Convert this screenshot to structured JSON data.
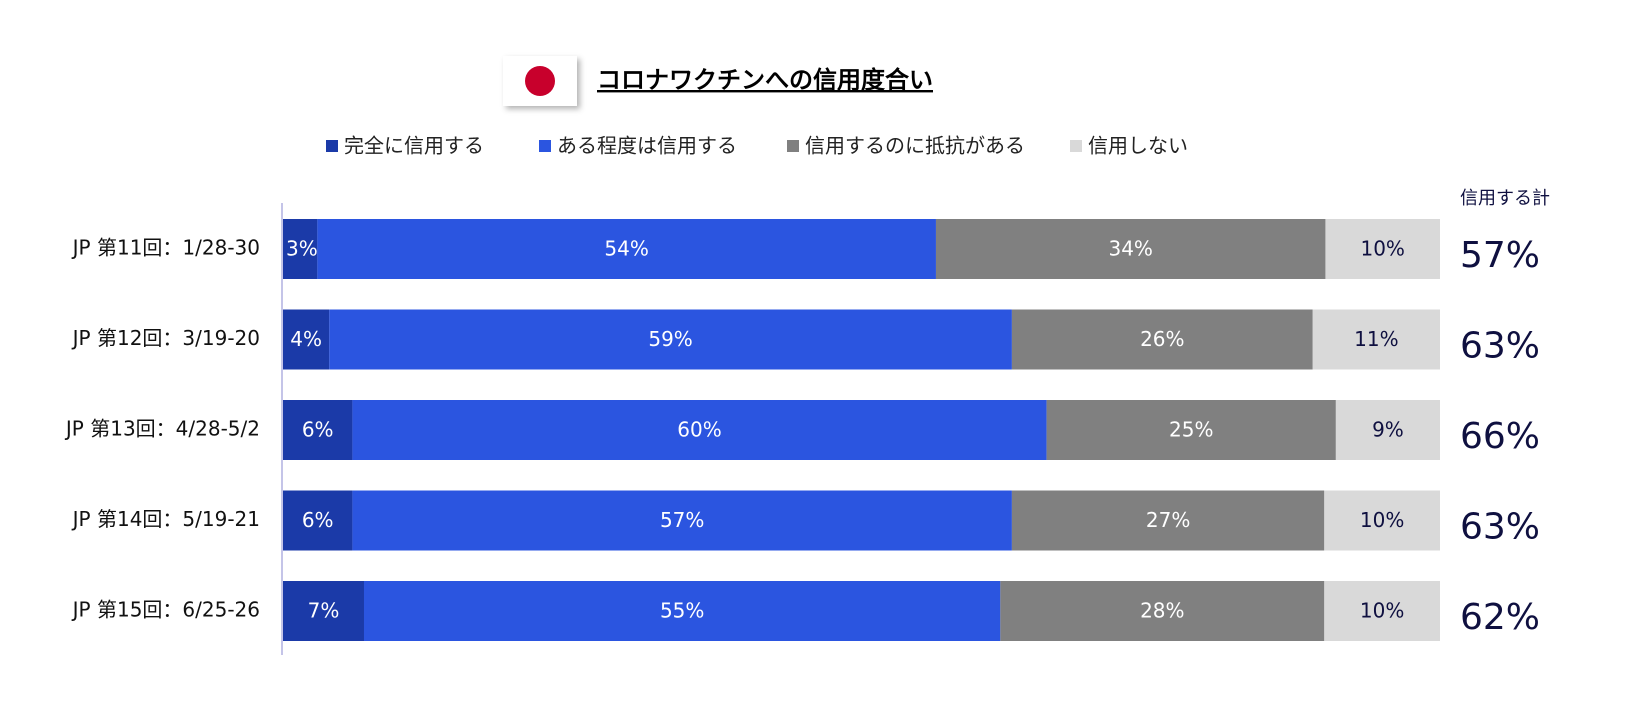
{
  "chart_data": {
    "type": "stacked-bar-horizontal",
    "title": "コロナワクチンへの信用度合い",
    "categories": [
      "JP 第11回：1/28-30",
      "JP 第12回：3/19-20",
      "JP 第13回：4/28-5/2",
      "JP 第14回：5/19-21",
      "JP 第15回：6/25-26"
    ],
    "series": [
      {
        "name": "完全に信用する",
        "color": "#1b3aa8",
        "values": [
          3,
          4,
          6,
          6,
          7
        ],
        "value_labels": [
          "3%",
          "4%",
          "6%",
          "6%",
          "7%"
        ]
      },
      {
        "name": "ある程度は信用する",
        "color": "#2b55e0",
        "values": [
          54,
          59,
          60,
          57,
          55
        ],
        "value_labels": [
          "54%",
          "59%",
          "60%",
          "57%",
          "55%"
        ]
      },
      {
        "name": "信用するのに抵抗がある",
        "color": "#808080",
        "values": [
          34,
          26,
          25,
          27,
          28
        ],
        "value_labels": [
          "34%",
          "26%",
          "25%",
          "27%",
          "28%"
        ]
      },
      {
        "name": "信用しない",
        "color": "#d9d9d9",
        "values": [
          10,
          11,
          9,
          10,
          10
        ],
        "value_labels": [
          "10%",
          "11%",
          "9%",
          "10%",
          "10%"
        ]
      }
    ],
    "totals": {
      "name": "信用する計",
      "values": [
        57,
        63,
        66,
        63,
        62
      ],
      "value_labels": [
        "57%",
        "63%",
        "66%",
        "63%",
        "62%"
      ]
    },
    "legend": "top"
  }
}
